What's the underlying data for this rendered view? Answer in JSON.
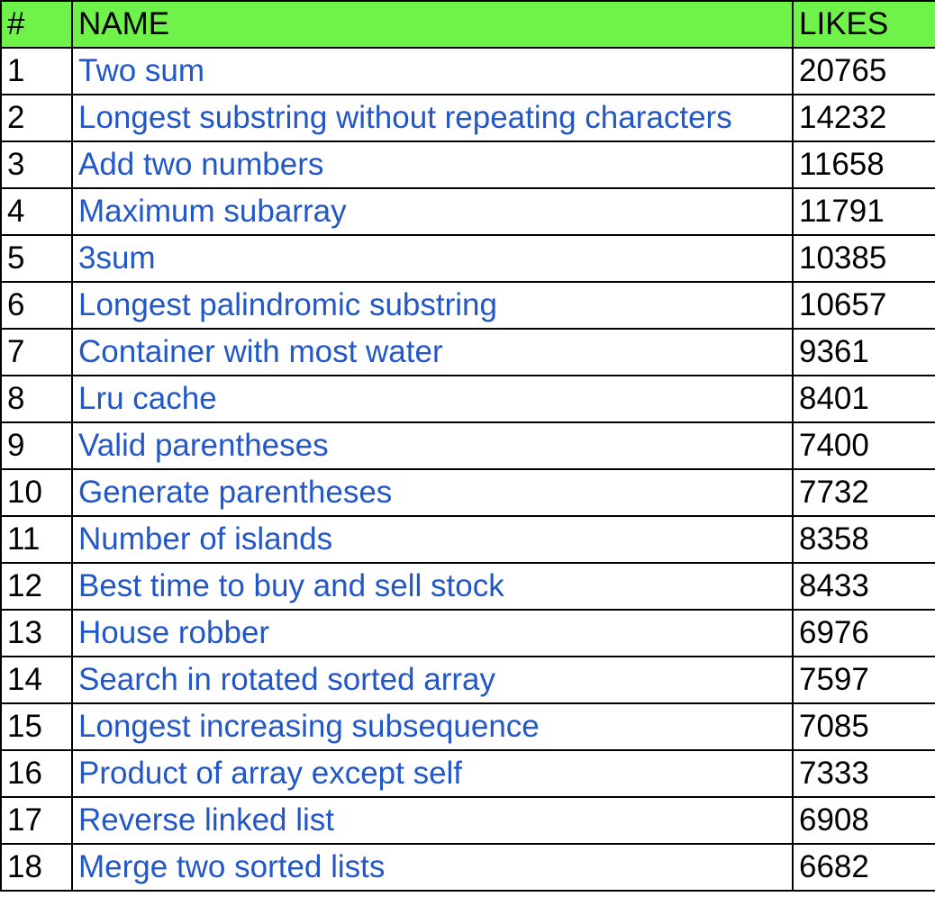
{
  "table": {
    "headers": {
      "num": "#",
      "name": "NAME",
      "likes": "LIKES"
    },
    "rows": [
      {
        "num": "1",
        "name": "Two sum",
        "likes": "20765"
      },
      {
        "num": "2",
        "name": "Longest substring without repeating characters",
        "likes": "14232"
      },
      {
        "num": "3",
        "name": "Add two numbers",
        "likes": "11658"
      },
      {
        "num": "4",
        "name": "Maximum subarray",
        "likes": "11791"
      },
      {
        "num": "5",
        "name": "3sum",
        "likes": "10385"
      },
      {
        "num": "6",
        "name": "Longest palindromic substring",
        "likes": "10657"
      },
      {
        "num": "7",
        "name": "Container with most water",
        "likes": "9361"
      },
      {
        "num": "8",
        "name": "Lru cache",
        "likes": "8401"
      },
      {
        "num": "9",
        "name": "Valid parentheses",
        "likes": "7400"
      },
      {
        "num": "10",
        "name": "Generate parentheses",
        "likes": "7732"
      },
      {
        "num": "11",
        "name": "Number of islands",
        "likes": "8358"
      },
      {
        "num": "12",
        "name": "Best time to buy and sell stock",
        "likes": "8433"
      },
      {
        "num": "13",
        "name": "House robber",
        "likes": "6976"
      },
      {
        "num": "14",
        "name": "Search in rotated sorted array",
        "likes": "7597"
      },
      {
        "num": "15",
        "name": "Longest increasing subsequence",
        "likes": "7085"
      },
      {
        "num": "16",
        "name": "Product of array except self",
        "likes": "7333"
      },
      {
        "num": "17",
        "name": "Reverse linked list",
        "likes": "6908"
      },
      {
        "num": "18",
        "name": "Merge two sorted lists",
        "likes": "6682"
      }
    ]
  },
  "colors": {
    "header_background": "#6ff24a",
    "link_text": "#2257c8",
    "grid_lines": "#000000"
  }
}
